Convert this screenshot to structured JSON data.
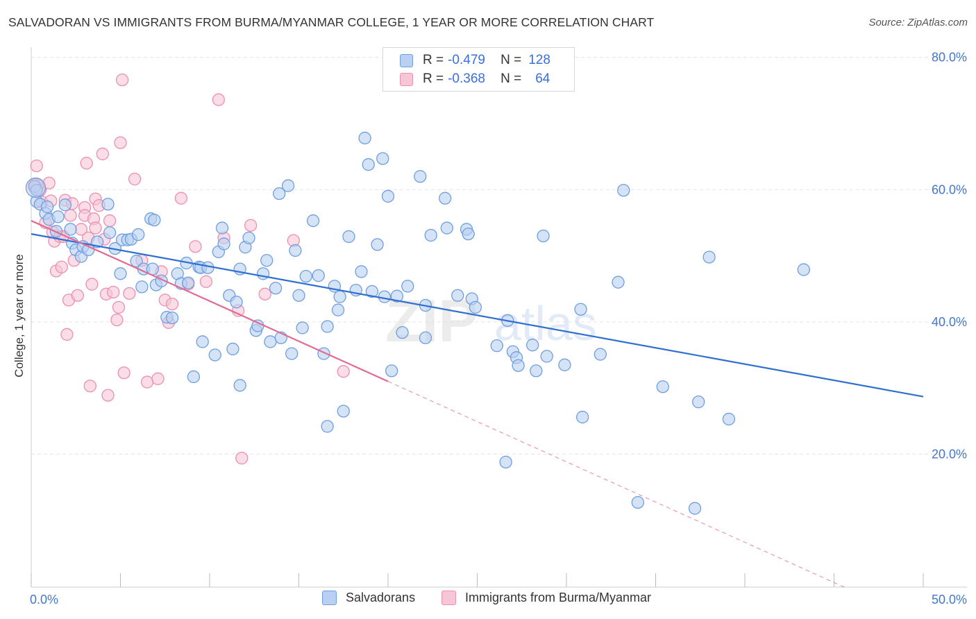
{
  "header": {
    "title": "SALVADORAN VS IMMIGRANTS FROM BURMA/MYANMAR COLLEGE, 1 YEAR OR MORE CORRELATION CHART",
    "source": "Source: ZipAtlas.com"
  },
  "watermark": {
    "zip": "ZIP",
    "atlas": "atlas"
  },
  "colors": {
    "blue_fill": "#b9d0f2",
    "blue_stroke": "#6f9ee0",
    "blue_line": "#2f6fd0",
    "pink_fill": "#f7c6d6",
    "pink_stroke": "#ec8fb0",
    "pink_line": "#e26a94",
    "grid": "#e3e3e3",
    "tick_text": "#4477cc"
  },
  "legend": {
    "r_label": "R =",
    "n_label": "N =",
    "rows": [
      {
        "r": "-0.479",
        "n": "128",
        "color": "blue"
      },
      {
        "r": "-0.368",
        "n": "64",
        "color": "pink"
      }
    ]
  },
  "chart_data": {
    "type": "scatter",
    "title": "SALVADORAN VS IMMIGRANTS FROM BURMA/MYANMAR COLLEGE, 1 YEAR OR MORE CORRELATION CHART",
    "xlabel": "",
    "ylabel": "College, 1 year or more",
    "xlim": [
      0,
      50
    ],
    "ylim": [
      0,
      82
    ],
    "x_tick_labels": [
      "0.0%",
      "50.0%"
    ],
    "y_ticks": [
      20,
      40,
      60,
      80
    ],
    "y_tick_labels": [
      "20.0%",
      "40.0%",
      "60.0%",
      "80.0%"
    ],
    "grid": "horizontal dashed",
    "legend_position": "top-center",
    "series": [
      {
        "name": "Salvadorans",
        "color": "#6f9ee0",
        "trend": {
          "x": [
            0,
            50
          ],
          "y": [
            53.3,
            28.7
          ],
          "style": "solid"
        },
        "points": [
          [
            0.2,
            60.5
          ],
          [
            0.3,
            59.9
          ],
          [
            0.3,
            58.2
          ],
          [
            0.5,
            57.8
          ],
          [
            0.8,
            56.4
          ],
          [
            0.9,
            57.4
          ],
          [
            1.0,
            55.5
          ],
          [
            1.4,
            53.7
          ],
          [
            1.5,
            55.9
          ],
          [
            1.9,
            57.7
          ],
          [
            2.2,
            54.0
          ],
          [
            2.3,
            51.9
          ],
          [
            2.5,
            50.9
          ],
          [
            2.8,
            49.9
          ],
          [
            2.9,
            51.4
          ],
          [
            3.2,
            50.9
          ],
          [
            3.7,
            52.1
          ],
          [
            4.3,
            57.8
          ],
          [
            4.4,
            53.5
          ],
          [
            4.7,
            51.1
          ],
          [
            5.1,
            52.4
          ],
          [
            5.0,
            47.3
          ],
          [
            5.4,
            52.4
          ],
          [
            5.6,
            52.5
          ],
          [
            5.9,
            49.2
          ],
          [
            6.0,
            53.2
          ],
          [
            6.3,
            48.0
          ],
          [
            6.2,
            45.3
          ],
          [
            6.8,
            48.0
          ],
          [
            7.0,
            45.6
          ],
          [
            6.7,
            55.6
          ],
          [
            6.9,
            55.4
          ],
          [
            7.3,
            46.2
          ],
          [
            7.6,
            40.7
          ],
          [
            7.9,
            40.6
          ],
          [
            8.2,
            47.3
          ],
          [
            8.4,
            45.8
          ],
          [
            8.7,
            48.9
          ],
          [
            8.8,
            45.9
          ],
          [
            9.1,
            31.7
          ],
          [
            9.4,
            48.3
          ],
          [
            9.5,
            48.2
          ],
          [
            9.6,
            37.0
          ],
          [
            9.9,
            48.2
          ],
          [
            10.3,
            35.0
          ],
          [
            10.5,
            50.6
          ],
          [
            10.7,
            54.2
          ],
          [
            10.8,
            51.8
          ],
          [
            11.1,
            44.0
          ],
          [
            11.3,
            35.9
          ],
          [
            11.5,
            43.0
          ],
          [
            11.7,
            48.0
          ],
          [
            11.7,
            30.4
          ],
          [
            12.0,
            51.3
          ],
          [
            12.2,
            52.7
          ],
          [
            12.6,
            38.7
          ],
          [
            12.7,
            39.4
          ],
          [
            13.0,
            47.3
          ],
          [
            13.2,
            49.3
          ],
          [
            13.4,
            37.0
          ],
          [
            13.7,
            45.1
          ],
          [
            13.9,
            59.4
          ],
          [
            14.0,
            37.6
          ],
          [
            14.4,
            60.6
          ],
          [
            14.6,
            35.2
          ],
          [
            14.8,
            50.8
          ],
          [
            15.0,
            44.0
          ],
          [
            15.2,
            39.1
          ],
          [
            15.4,
            46.9
          ],
          [
            15.8,
            55.3
          ],
          [
            16.1,
            47.0
          ],
          [
            16.4,
            35.2
          ],
          [
            16.6,
            39.3
          ],
          [
            16.6,
            24.2
          ],
          [
            17.0,
            45.4
          ],
          [
            17.2,
            41.8
          ],
          [
            17.3,
            43.8
          ],
          [
            17.5,
            26.5
          ],
          [
            17.8,
            52.9
          ],
          [
            18.2,
            44.8
          ],
          [
            18.5,
            47.6
          ],
          [
            18.7,
            67.8
          ],
          [
            18.9,
            63.8
          ],
          [
            19.1,
            44.6
          ],
          [
            19.4,
            51.7
          ],
          [
            19.7,
            64.7
          ],
          [
            19.8,
            43.8
          ],
          [
            20.0,
            59.0
          ],
          [
            20.2,
            32.6
          ],
          [
            20.5,
            43.9
          ],
          [
            20.8,
            38.4
          ],
          [
            21.1,
            45.4
          ],
          [
            21.8,
            62.0
          ],
          [
            22.1,
            42.5
          ],
          [
            22.1,
            37.6
          ],
          [
            22.4,
            53.1
          ],
          [
            23.2,
            58.7
          ],
          [
            23.3,
            54.2
          ],
          [
            23.9,
            44.0
          ],
          [
            24.4,
            54.0
          ],
          [
            24.5,
            53.3
          ],
          [
            24.7,
            43.5
          ],
          [
            24.9,
            42.2
          ],
          [
            26.1,
            36.4
          ],
          [
            26.6,
            18.8
          ],
          [
            26.7,
            40.2
          ],
          [
            27.0,
            35.5
          ],
          [
            27.2,
            34.6
          ],
          [
            27.3,
            33.4
          ],
          [
            28.1,
            36.5
          ],
          [
            28.3,
            32.6
          ],
          [
            28.7,
            53.0
          ],
          [
            28.9,
            34.8
          ],
          [
            29.9,
            33.5
          ],
          [
            30.8,
            41.9
          ],
          [
            30.9,
            25.6
          ],
          [
            31.9,
            35.1
          ],
          [
            32.9,
            46.0
          ],
          [
            33.2,
            59.9
          ],
          [
            34.0,
            12.7
          ],
          [
            35.4,
            30.2
          ],
          [
            37.2,
            11.8
          ],
          [
            37.4,
            27.9
          ],
          [
            38.0,
            49.8
          ],
          [
            39.1,
            25.3
          ],
          [
            43.3,
            47.9
          ]
        ]
      },
      {
        "name": "Immigrants from Burma/Myanmar",
        "color": "#ec8fb0",
        "trend": {
          "x": [
            0,
            20
          ],
          "y": [
            55.3,
            31.0
          ],
          "style": "solid",
          "extension_x": [
            20,
            50
          ],
          "extension_y": [
            31.0,
            -5.5
          ]
        },
        "points": [
          [
            0.2,
            60.7
          ],
          [
            0.3,
            60.3
          ],
          [
            0.3,
            63.6
          ],
          [
            0.5,
            59.9
          ],
          [
            0.6,
            58.1
          ],
          [
            0.8,
            55.0
          ],
          [
            1.0,
            61.0
          ],
          [
            1.1,
            58.3
          ],
          [
            1.2,
            53.6
          ],
          [
            1.3,
            52.2
          ],
          [
            1.4,
            47.7
          ],
          [
            1.6,
            52.9
          ],
          [
            1.7,
            48.3
          ],
          [
            1.8,
            52.9
          ],
          [
            1.9,
            58.4
          ],
          [
            2.0,
            38.1
          ],
          [
            2.1,
            43.3
          ],
          [
            2.2,
            56.1
          ],
          [
            2.3,
            57.9
          ],
          [
            2.4,
            49.3
          ],
          [
            2.6,
            44.0
          ],
          [
            2.8,
            54.0
          ],
          [
            3.0,
            57.3
          ],
          [
            3.0,
            56.1
          ],
          [
            3.1,
            64.0
          ],
          [
            3.2,
            52.7
          ],
          [
            3.3,
            30.3
          ],
          [
            3.4,
            45.7
          ],
          [
            3.5,
            55.6
          ],
          [
            3.6,
            58.6
          ],
          [
            3.6,
            54.2
          ],
          [
            3.8,
            57.6
          ],
          [
            4.0,
            65.4
          ],
          [
            4.1,
            52.5
          ],
          [
            4.2,
            44.2
          ],
          [
            4.3,
            28.9
          ],
          [
            4.4,
            55.3
          ],
          [
            4.6,
            44.5
          ],
          [
            4.8,
            40.3
          ],
          [
            4.9,
            42.2
          ],
          [
            5.0,
            67.1
          ],
          [
            5.1,
            76.6
          ],
          [
            5.2,
            32.3
          ],
          [
            5.5,
            44.3
          ],
          [
            5.8,
            61.6
          ],
          [
            6.2,
            49.3
          ],
          [
            6.5,
            30.9
          ],
          [
            7.1,
            31.4
          ],
          [
            7.3,
            47.6
          ],
          [
            7.5,
            43.3
          ],
          [
            7.7,
            39.9
          ],
          [
            7.9,
            42.7
          ],
          [
            8.4,
            58.7
          ],
          [
            8.8,
            45.7
          ],
          [
            9.2,
            51.4
          ],
          [
            9.8,
            46.1
          ],
          [
            10.5,
            73.6
          ],
          [
            10.8,
            52.7
          ],
          [
            11.6,
            41.7
          ],
          [
            11.8,
            19.4
          ],
          [
            12.3,
            54.6
          ],
          [
            13.1,
            44.2
          ],
          [
            14.7,
            52.3
          ],
          [
            17.5,
            32.5
          ]
        ]
      }
    ]
  },
  "bottom_legend": {
    "items": [
      {
        "label": "Salvadorans",
        "color": "blue"
      },
      {
        "label": "Immigrants from Burma/Myanmar",
        "color": "pink"
      }
    ]
  }
}
